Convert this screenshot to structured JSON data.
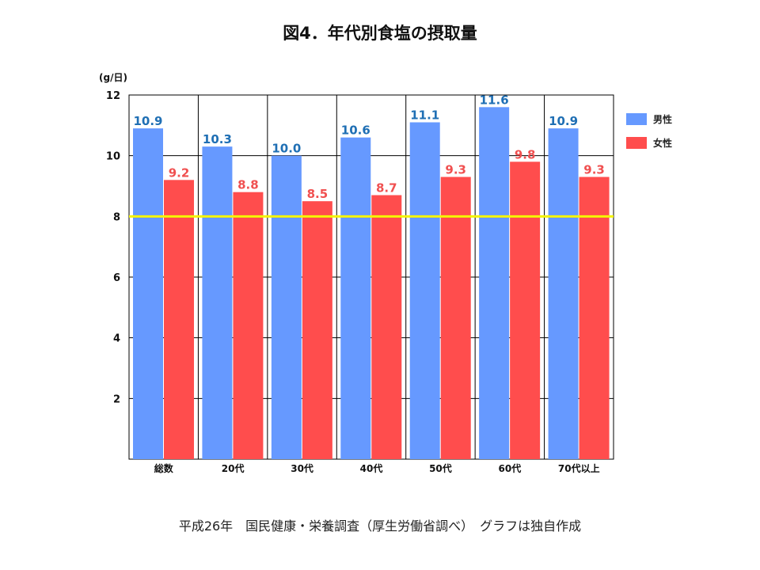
{
  "title": "図4．年代別食塩の摂取量",
  "footer": "平成26年　国民健康・栄養調査（厚生労働省調べ）　グラフは独自作成",
  "legend": [
    {
      "label": "男性",
      "color": "#6699ff"
    },
    {
      "label": "女性",
      "color": "#ff4d4d"
    }
  ],
  "chart_data": {
    "type": "bar",
    "title": "図4．年代別食塩の摂取量",
    "ylabel": "(g/日)",
    "xlabel": "",
    "categories": [
      "総数",
      "20代",
      "30代",
      "40代",
      "50代",
      "60代",
      "70代以上"
    ],
    "series": [
      {
        "name": "男性",
        "color": "#6699ff",
        "label_color": "#1f6fb4",
        "values": [
          10.9,
          10.3,
          10.0,
          10.6,
          11.1,
          11.6,
          10.9
        ]
      },
      {
        "name": "女性",
        "color": "#ff4d4d",
        "label_color": "#f05050",
        "values": [
          9.2,
          8.8,
          8.5,
          8.7,
          9.3,
          9.8,
          9.3
        ]
      }
    ],
    "ylim": [
      0,
      12
    ],
    "yticks": [
      2,
      4,
      6,
      8,
      10,
      12
    ],
    "reference_line": {
      "value": 8,
      "color": "#f5f500"
    },
    "grid": true,
    "legend_position": "right"
  }
}
